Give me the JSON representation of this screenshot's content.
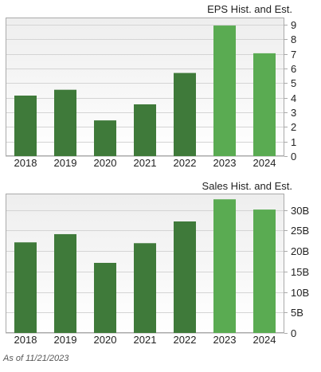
{
  "footer": {
    "as_of": "As of 11/21/2023"
  },
  "colors": {
    "historical": "#3f7a3a",
    "estimate": "#5aab52",
    "grid": "#d4d4d4",
    "frame": "#aaaaaa",
    "background_top": "#eeeeee",
    "background_bottom": "#ffffff"
  },
  "chart_data": [
    {
      "type": "bar",
      "title": "EPS Hist. and Est.",
      "categories": [
        "2018",
        "2019",
        "2020",
        "2021",
        "2022",
        "2023",
        "2024"
      ],
      "values": [
        4.15,
        4.55,
        2.45,
        3.55,
        5.7,
        8.95,
        7.05
      ],
      "kind": [
        "historical",
        "historical",
        "historical",
        "historical",
        "historical",
        "estimate",
        "estimate"
      ],
      "ylim": [
        0,
        9.5
      ],
      "yticks": [
        0,
        1,
        2,
        3,
        4,
        5,
        6,
        7,
        8,
        9
      ],
      "ytick_labels": [
        "0",
        "1",
        "2",
        "3",
        "4",
        "5",
        "6",
        "7",
        "8",
        "9"
      ],
      "ylabel": "",
      "xlabel": "",
      "y_axis_side": "right",
      "grid": true
    },
    {
      "type": "bar",
      "title": "Sales Hist. and Est.",
      "categories": [
        "2018",
        "2019",
        "2020",
        "2021",
        "2022",
        "2023",
        "2024"
      ],
      "values": [
        22.1,
        24.1,
        17.1,
        21.9,
        27.2,
        32.6,
        30.1
      ],
      "kind": [
        "historical",
        "historical",
        "historical",
        "historical",
        "historical",
        "estimate",
        "estimate"
      ],
      "ylim": [
        0,
        34
      ],
      "yticks": [
        0,
        5,
        10,
        15,
        20,
        25,
        30
      ],
      "ytick_labels": [
        "0",
        "5B",
        "10B",
        "15B",
        "20B",
        "25B",
        "30B"
      ],
      "ylabel": "",
      "xlabel": "",
      "y_axis_side": "right",
      "grid": true
    }
  ]
}
